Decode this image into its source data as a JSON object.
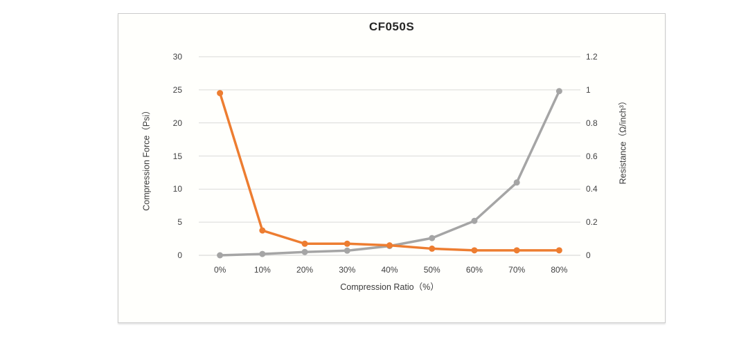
{
  "page": {
    "background": "#ffffff",
    "panel_background": "#fffffc",
    "panel_border": "#cbcbcb"
  },
  "chart_data": {
    "type": "line",
    "title": "CF050S",
    "categories": [
      "0%",
      "10%",
      "20%",
      "30%",
      "40%",
      "50%",
      "60%",
      "70%",
      "80%"
    ],
    "series": [
      {
        "name": "Compression Force",
        "axis": "left",
        "color": "#a5a5a5",
        "values": [
          0,
          0.2,
          0.5,
          0.7,
          1.4,
          2.6,
          5.2,
          11,
          24.8
        ]
      },
      {
        "name": "Resistance",
        "axis": "right",
        "color": "#ed7d31",
        "values": [
          0.98,
          0.15,
          0.07,
          0.07,
          0.06,
          0.04,
          0.03,
          0.03,
          0.03
        ]
      }
    ],
    "xlabel": "Compression Ratio（%）",
    "ylabel_left": "Compression Force（Psi）",
    "ylabel_right": "Resistance（Ω/inch³）",
    "left_axis": {
      "min": 0,
      "max": 30,
      "step": 5,
      "ticks": [
        "0",
        "5",
        "10",
        "15",
        "20",
        "25",
        "30"
      ]
    },
    "right_axis": {
      "min": 0,
      "max": 1.2,
      "step": 0.2,
      "ticks": [
        "0",
        "0.2",
        "0.4",
        "0.6",
        "0.8",
        "1",
        "1.2"
      ]
    },
    "grid": true,
    "legend": "none",
    "gridline_color": "#d9d9d9",
    "axis_line_color": "#d0d0d0",
    "marker": "circle",
    "line_width": 3.5,
    "marker_radius": 4.5
  }
}
